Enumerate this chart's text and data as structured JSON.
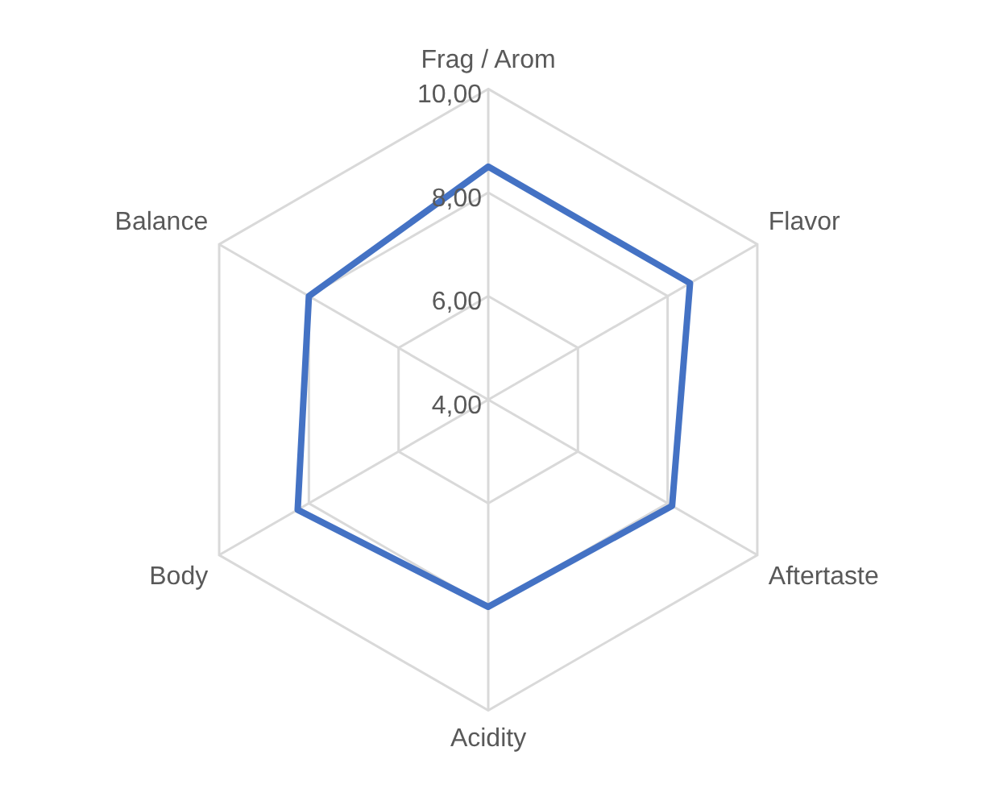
{
  "chart_data": {
    "type": "radar",
    "categories": [
      "Frag / Arom",
      "Flavor",
      "Aftertaste",
      "Acidity",
      "Body",
      "Balance"
    ],
    "series": [
      {
        "color": "#4472c4",
        "values": [
          8.5,
          8.5,
          8.1,
          8.0,
          8.25,
          8.0
        ]
      }
    ],
    "ylim": [
      4,
      10
    ],
    "yticks": [
      {
        "value": 4,
        "label": "4,00"
      },
      {
        "value": 6,
        "label": "6,00"
      },
      {
        "value": 8,
        "label": "8,00"
      },
      {
        "value": 10,
        "label": "10,00"
      }
    ],
    "grid": true,
    "legend": false,
    "marker": "none",
    "line_style": "solid"
  }
}
